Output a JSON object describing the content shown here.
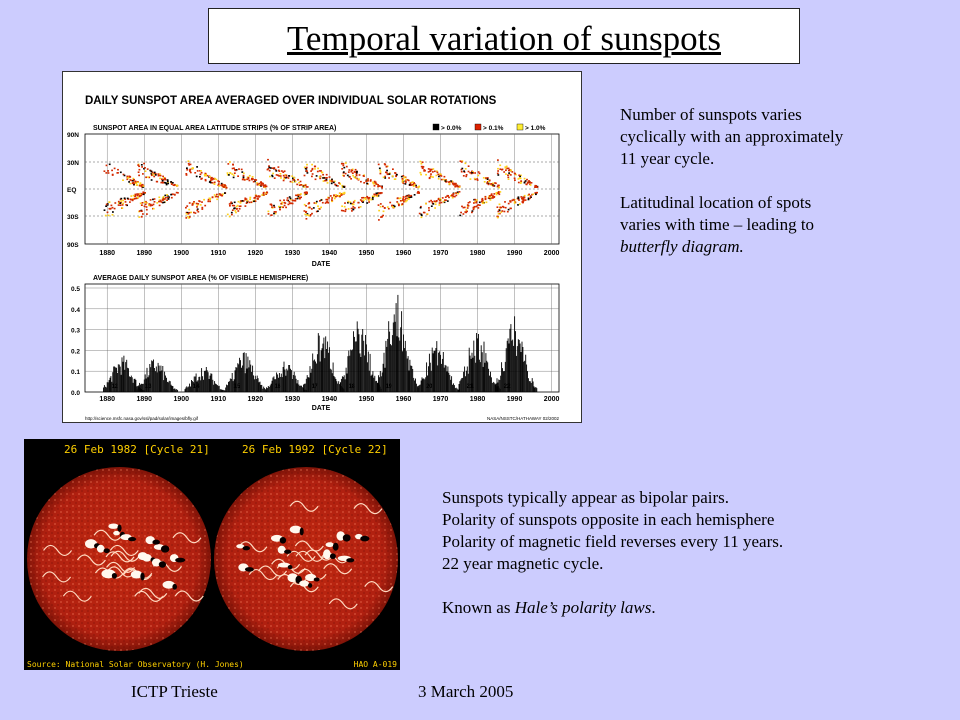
{
  "slide": {
    "title": "Temporal variation of sunspots",
    "footer_left": "ICTP Trieste",
    "footer_right": "3 March 2005",
    "text_block_1": {
      "line1": "Number of sunspots varies",
      "line2": "cyclically with an approximately",
      "line3": "11 year cycle.",
      "line4": "Latitudinal location of spots",
      "line5": "varies with time – leading to",
      "line6_italic": "butterfly diagram."
    },
    "text_block_2": {
      "line1": "Sunspots typically appear as bipolar pairs.",
      "line2": "Polarity of sunspots opposite in each hemisphere",
      "line3": "Polarity of magnetic field reverses every 11 years.",
      "line4": "22 year magnetic cycle.",
      "line5_prefix": "Known as ",
      "line5_italic": "Hale’s polarity laws",
      "line5_suffix": "."
    }
  },
  "figure1": {
    "heading": "DAILY SUNSPOT AREA AVERAGED OVER INDIVIDUAL SOLAR ROTATIONS",
    "panel1_title": "SUNSPOT AREA IN EQUAL AREA LATITUDE STRIPS (% OF STRIP AREA)",
    "legend": [
      "> 0.0%",
      "> 0.1%",
      "> 1.0%"
    ],
    "legend_colors": [
      "#000000",
      "#dd2200",
      "#ffee33"
    ],
    "lat_labels": [
      "90N",
      "30N",
      "EQ",
      "30S",
      "90S"
    ],
    "year_labels": [
      "1880",
      "1890",
      "1900",
      "1910",
      "1920",
      "1930",
      "1940",
      "1950",
      "1960",
      "1970",
      "1980",
      "1990",
      "2000"
    ],
    "xlabel": "DATE",
    "panel2_title": "AVERAGE DAILY SUNSPOT AREA (% OF VISIBLE HEMISPHERE)",
    "y_labels": [
      "0.5",
      "0.4",
      "0.3",
      "0.2",
      "0.1",
      "0.0"
    ],
    "cycle_labels": [
      "12",
      "13",
      "14",
      "15",
      "16",
      "17",
      "18",
      "19",
      "20",
      "21",
      "22"
    ],
    "credit_left": "http://science.msfc.nasa.gov/ssl/pad/solar/images/bfly.gif",
    "credit_right": "NASA/NSSTC/HATHAWAY  02/2002"
  },
  "chart_data": {
    "type": "bar",
    "title": "AVERAGE DAILY SUNSPOT AREA (% OF VISIBLE HEMISPHERE)",
    "xlabel": "DATE",
    "ylabel": "",
    "ylim": [
      0,
      0.5
    ],
    "xlim": [
      1874,
      2002
    ],
    "cycle_peaks": [
      {
        "cycle": "12",
        "year": 1884,
        "peak": 0.18
      },
      {
        "cycle": "13",
        "year": 1893,
        "peak": 0.17
      },
      {
        "cycle": "14",
        "year": 1906,
        "peak": 0.13
      },
      {
        "cycle": "15",
        "year": 1917,
        "peak": 0.2
      },
      {
        "cycle": "16",
        "year": 1928,
        "peak": 0.16
      },
      {
        "cycle": "17",
        "year": 1938,
        "peak": 0.31
      },
      {
        "cycle": "18",
        "year": 1948,
        "peak": 0.36
      },
      {
        "cycle": "19",
        "year": 1958,
        "peak": 0.5
      },
      {
        "cycle": "20",
        "year": 1969,
        "peak": 0.25
      },
      {
        "cycle": "21",
        "year": 1980,
        "peak": 0.31
      },
      {
        "cycle": "22",
        "year": 1990,
        "peak": 0.37
      }
    ]
  },
  "figure2": {
    "label_left": "26 Feb 1982 [Cycle 21]",
    "label_right": "26 Feb 1992 [Cycle 22]",
    "source": "Source: National Solar Observatory (H. Jones)",
    "code": "HAO A-019"
  }
}
